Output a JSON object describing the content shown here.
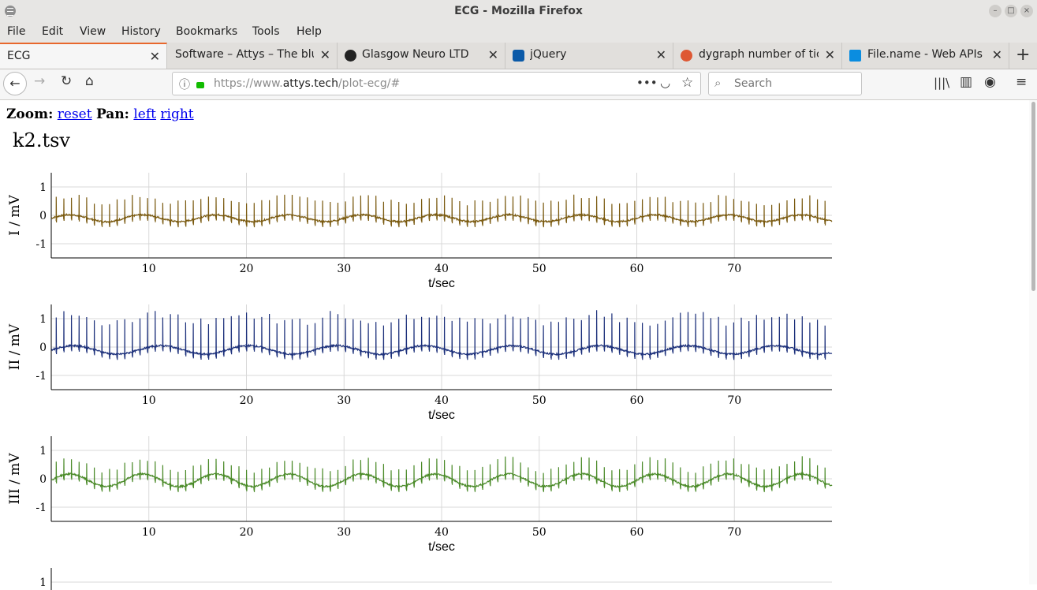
{
  "window": {
    "title": "ECG - Mozilla Firefox"
  },
  "menu": [
    "File",
    "Edit",
    "View",
    "History",
    "Bookmarks",
    "Tools",
    "Help"
  ],
  "tabs": [
    {
      "label": "ECG",
      "icon": "none"
    },
    {
      "label": "Software – Attys – The blue",
      "icon": "none"
    },
    {
      "label": "Glasgow Neuro LTD",
      "icon": "github-icon"
    },
    {
      "label": "jQuery",
      "icon": "jquery-icon"
    },
    {
      "label": "dygraph number of ticks",
      "icon": "duckduckgo-icon"
    },
    {
      "label": "File.name - Web APIs | MDN",
      "icon": "mdn-icon"
    }
  ],
  "url": {
    "prefix": "https://www.",
    "domain": "attys.tech",
    "path": "/plot-ecg/#"
  },
  "search": {
    "placeholder": "Search"
  },
  "page": {
    "zoom_label": "Zoom:",
    "reset": "reset",
    "pan_label": "Pan:",
    "left": "left",
    "right": "right",
    "filename": "k2.tsv"
  },
  "chart_data": [
    {
      "type": "line",
      "ylabel": "I / mV",
      "xlabel": "t/sec",
      "color": "#7a5a10",
      "xlim": [
        0,
        80
      ],
      "ylim": [
        -1.5,
        1.5
      ],
      "xticks": [
        10,
        20,
        30,
        40,
        50,
        60,
        70
      ],
      "yticks": [
        1,
        0,
        -1
      ],
      "ecg": {
        "baseline": -0.1,
        "wander": 0.12,
        "wander_period": 7.5,
        "r_peak": 0.65,
        "beat_period": 0.78,
        "start": 0.5
      }
    },
    {
      "type": "line",
      "ylabel": "II / mV",
      "xlabel": "t/sec",
      "color": "#1b2f7a",
      "xlim": [
        0,
        80
      ],
      "ylim": [
        -1.5,
        1.5
      ],
      "xticks": [
        10,
        20,
        30,
        40,
        50,
        60,
        70
      ],
      "yticks": [
        1,
        0,
        -1
      ],
      "ecg": {
        "baseline": -0.1,
        "wander": 0.15,
        "wander_period": 9,
        "r_peak": 1.1,
        "beat_period": 0.78,
        "start": 0.5
      }
    },
    {
      "type": "line",
      "ylabel": "III / mV",
      "xlabel": "t/sec",
      "color": "#4a8a28",
      "xlim": [
        0,
        80
      ],
      "ylim": [
        -1.5,
        1.5
      ],
      "xticks": [
        10,
        20,
        30,
        40,
        50,
        60,
        70
      ],
      "yticks": [
        1,
        0,
        -1
      ],
      "ecg": {
        "baseline": -0.05,
        "wander": 0.22,
        "wander_period": 7.5,
        "r_peak": 0.55,
        "beat_period": 0.78,
        "start": 0.5
      }
    },
    {
      "type": "line",
      "ylabel": "",
      "xlabel": "",
      "color": "#000000",
      "xlim": [
        0,
        80
      ],
      "ylim": [
        -1.5,
        1.5
      ],
      "xticks": [],
      "yticks": [
        1
      ],
      "ecg": null
    }
  ]
}
